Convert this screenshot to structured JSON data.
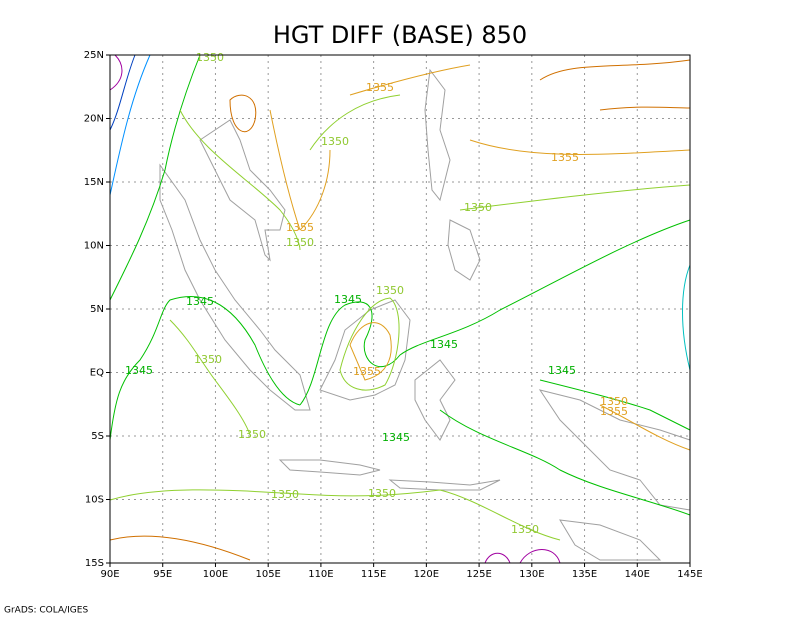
{
  "map": {
    "title": "HGT DIFF (BASE) 850",
    "x_labels": [
      "90E",
      "95E",
      "100E",
      "105E",
      "110E",
      "115E",
      "120E",
      "125E",
      "130E",
      "135E",
      "140E",
      "145E"
    ],
    "y_labels": [
      "25N",
      "20N",
      "15N",
      "10N",
      "5N",
      "EQ",
      "5S",
      "10S",
      "15S"
    ],
    "contour_labels": [
      "1350",
      "1355",
      "1350",
      "1355",
      "1350",
      "1355",
      "1350",
      "1345",
      "1345",
      "1350",
      "1345",
      "1350",
      "1345",
      "1355",
      "1345",
      "1350",
      "1355",
      "1350",
      "1345",
      "1350",
      "1350",
      "1350"
    ],
    "footer": "GrADS: COLA/IGES"
  }
}
